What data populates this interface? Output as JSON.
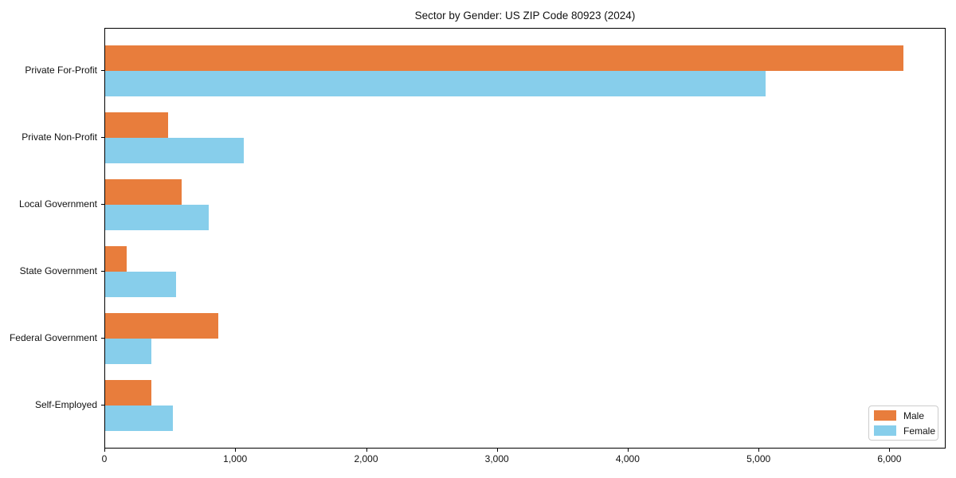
{
  "chart_data": {
    "type": "bar",
    "orientation": "horizontal",
    "title": "Sector by Gender: US ZIP Code 80923 (2024)",
    "categories": [
      "Private For-Profit",
      "Private Non-Profit",
      "Local Government",
      "State Government",
      "Federal Government",
      "Self-Employed"
    ],
    "series": [
      {
        "name": "Male",
        "color": "#e87d3c",
        "values": [
          6100,
          480,
          585,
          165,
          865,
          350
        ]
      },
      {
        "name": "Female",
        "color": "#87ceeb",
        "values": [
          5050,
          1060,
          790,
          540,
          350,
          520
        ]
      }
    ],
    "xlabel": "",
    "ylabel": "",
    "xlim": [
      0,
      6430
    ],
    "x_ticks": [
      0,
      1000,
      2000,
      3000,
      4000,
      5000,
      6000
    ],
    "x_tick_labels": [
      "0",
      "1,000",
      "2,000",
      "3,000",
      "4,000",
      "5,000",
      "6,000"
    ],
    "grid": false,
    "legend": {
      "position": "lower-right",
      "items": [
        "Male",
        "Female"
      ]
    }
  }
}
